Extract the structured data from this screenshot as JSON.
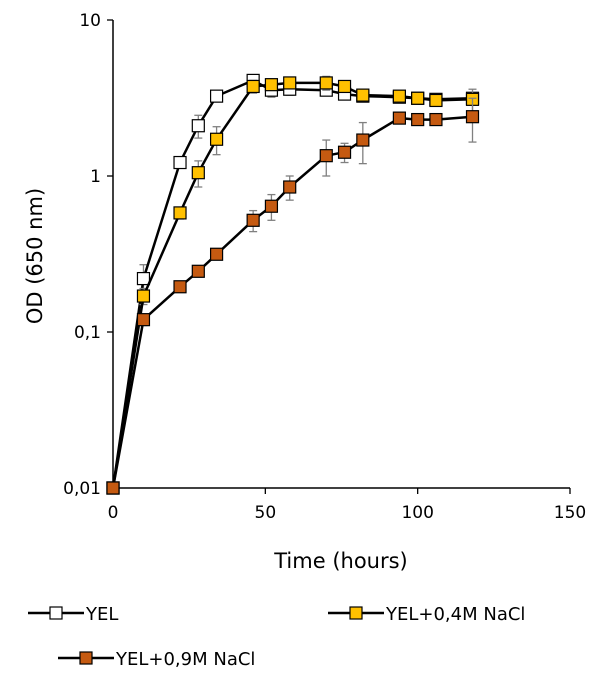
{
  "chart_data": {
    "type": "line",
    "ylabel": "OD (650 nm)",
    "xlabel": "Time (hours)",
    "yscale": "log",
    "xlim": [
      0,
      150
    ],
    "ylim": [
      0.01,
      10
    ],
    "x_ticks": [
      "0",
      "50",
      "100",
      "150"
    ],
    "y_ticks": [
      "0,01",
      "0,1",
      "1",
      "10"
    ],
    "grid": false,
    "legend_position": "bottom",
    "series": [
      {
        "name": "YEL",
        "fill": "#ffffff",
        "x": [
          0,
          10,
          22,
          28,
          34,
          46,
          52,
          58,
          70,
          76,
          82,
          94,
          100,
          106,
          118
        ],
        "y": [
          0.01,
          0.22,
          1.22,
          2.1,
          3.25,
          4.1,
          3.55,
          3.6,
          3.55,
          3.35,
          3.25,
          3.2,
          3.15,
          3.1,
          3.15
        ],
        "err": [
          0,
          0.05,
          0.1,
          0.35,
          0.2,
          0.3,
          0.35,
          0.3,
          0.25,
          0.2,
          0.15,
          0.15,
          0.15,
          0.2,
          0.2
        ]
      },
      {
        "name": "YEL+0,4M NaCl",
        "fill": "#ffc000",
        "x": [
          0,
          10,
          22,
          28,
          34,
          46,
          52,
          58,
          70,
          76,
          82,
          94,
          100,
          106,
          118
        ],
        "y": [
          0.01,
          0.17,
          0.58,
          1.05,
          1.72,
          3.75,
          3.85,
          3.95,
          3.95,
          3.75,
          3.3,
          3.25,
          3.15,
          3.05,
          3.1
        ],
        "err": [
          0,
          0.02,
          0.05,
          0.2,
          0.35,
          0.35,
          0.3,
          0.3,
          0.4,
          0.3,
          0.2,
          0.2,
          0.2,
          0.2,
          0.5
        ]
      },
      {
        "name": "YEL+0,9M NaCl",
        "fill": "#c55a11",
        "x": [
          0,
          10,
          22,
          28,
          34,
          46,
          52,
          58,
          70,
          76,
          82,
          94,
          100,
          106,
          118
        ],
        "y": [
          0.01,
          0.12,
          0.195,
          0.245,
          0.315,
          0.52,
          0.64,
          0.85,
          1.35,
          1.42,
          1.7,
          2.35,
          2.3,
          2.3,
          2.4
        ],
        "err": [
          0,
          0.01,
          0.01,
          0.02,
          0.02,
          0.08,
          0.12,
          0.15,
          0.35,
          0.2,
          0.5,
          0.15,
          0.15,
          0.15,
          0.75
        ]
      }
    ]
  }
}
